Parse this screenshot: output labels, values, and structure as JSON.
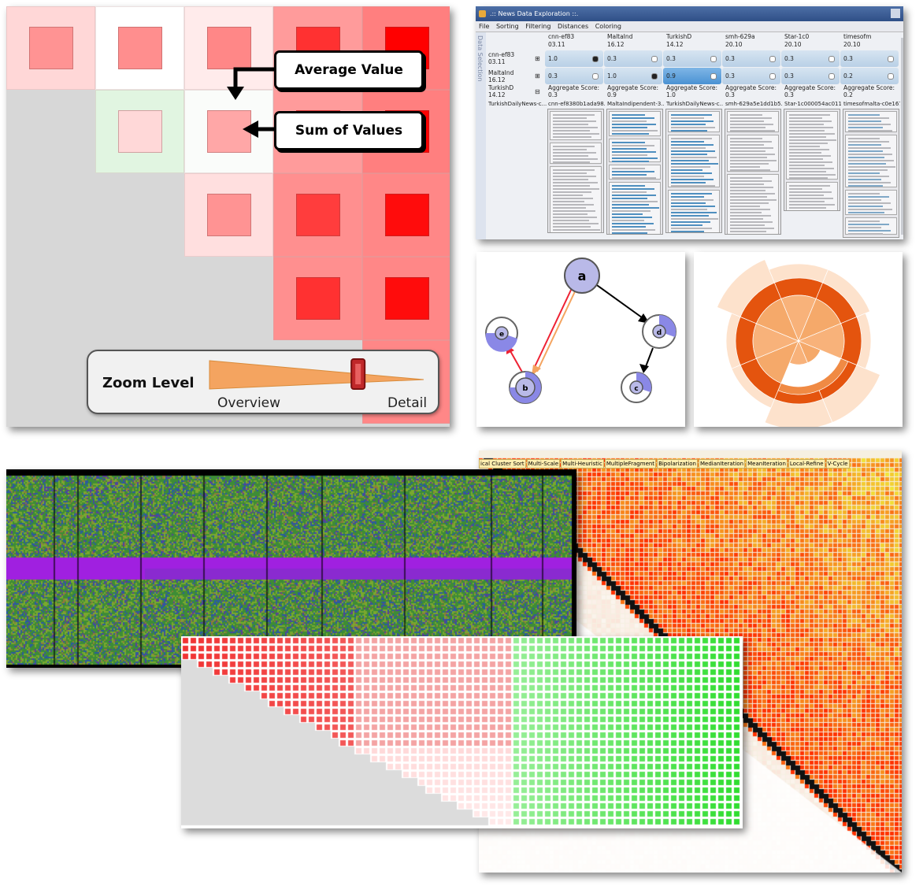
{
  "matrix_zoom": {
    "callout_average": "Average Value",
    "callout_sum": "Sum of Values",
    "zoom_label": "Zoom Level",
    "zoom_min_label": "Overview",
    "zoom_max_label": "Detail",
    "zoom_level": 0.77,
    "colors": {
      "accent": "#ff0000",
      "slider_fill": "#f4a460",
      "handle": "#c0282a"
    }
  },
  "news_app": {
    "window_title": ".:: News Data Exploration ::.",
    "menu": [
      "File",
      "Sorting",
      "Filtering",
      "Distances",
      "Coloring"
    ],
    "side_label": "Data Selection",
    "columns": [
      {
        "name": "cnn-ef83",
        "date": "03.11",
        "v1": "1.0",
        "v2": "0.3",
        "agg_label": "Aggregate Score:",
        "agg": "0.3",
        "doc": "cnn-ef8380b1ada98...",
        "dot1": "#222",
        "dot2": "#fff"
      },
      {
        "name": "MaltaInd",
        "date": "16.12",
        "v1": "0.3",
        "v2": "1.0",
        "agg_label": "Aggregate Score:",
        "agg": "0.9",
        "doc": "MaltaIndipendent-3...",
        "dot1": "#fff",
        "dot2": "#222"
      },
      {
        "name": "TurkishD",
        "date": "14.12",
        "v1": "0.3",
        "v2": "0.9",
        "agg_label": "Aggregate Score:",
        "agg": "1.0",
        "doc": "TurkishDailyNews-c...",
        "dot1": "#fff",
        "dot2": "#fff"
      },
      {
        "name": "smh-629a",
        "date": "20.10",
        "v1": "0.3",
        "v2": "0.3",
        "agg_label": "Aggregate Score:",
        "agg": "0.3",
        "doc": "smh-629a5e1dd1b5...",
        "dot1": "#fff",
        "dot2": "#fff"
      },
      {
        "name": "Star-1c0",
        "date": "20.10",
        "v1": "0.3",
        "v2": "0.3",
        "agg_label": "Aggregate Score:",
        "agg": "0.3",
        "doc": "Star-1c000054ac011...",
        "dot1": "#fff",
        "dot2": "#fff"
      },
      {
        "name": "timesofm",
        "date": "20.10",
        "v1": "0.3",
        "v2": "0.2",
        "agg_label": "Aggregate Score:",
        "agg": "0.2",
        "doc": "timesofmalta-c0e167...",
        "dot1": "#fff",
        "dot2": "#fff"
      }
    ],
    "rows": [
      {
        "name": "cnn-ef83",
        "date": "03.11"
      },
      {
        "name": "MaltaInd",
        "date": "16.12"
      },
      {
        "name": "TurkishD",
        "date": "14.12"
      }
    ],
    "first_doc": "TurkishDailyNews-c..."
  },
  "graph": {
    "nodes": [
      "a",
      "b",
      "c",
      "d",
      "e"
    ]
  },
  "sorting_matrix": {
    "buttons": [
      "ical Cluster Sort",
      "Multi-Scale",
      "Multi-Heuristic",
      "MultipleFragment",
      "Bipolarization",
      "MedianIteration",
      "MeanIteration",
      "Local-Refine",
      "V-Cycle"
    ]
  }
}
